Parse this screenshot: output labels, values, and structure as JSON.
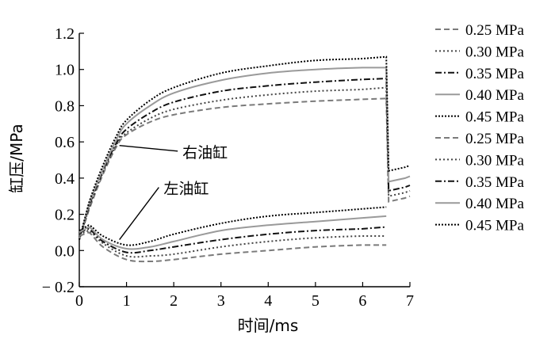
{
  "chart_data": {
    "type": "line",
    "title": "",
    "xlabel": "时间/ms",
    "ylabel": "缸压/MPa",
    "xlim": [
      0,
      7
    ],
    "ylim": [
      -0.2,
      1.2
    ],
    "xticks": [
      0,
      1,
      2,
      3,
      4,
      5,
      6,
      7
    ],
    "yticks": [
      -0.2,
      0.0,
      0.2,
      0.4,
      0.6,
      0.8,
      1.0,
      1.2
    ],
    "ytick_labels": [
      "− 0.2",
      "0.0",
      "0.2",
      "0.4",
      "0.6",
      "0.8",
      "1.0",
      "1.2"
    ],
    "xtick_labels": [
      "0",
      "1",
      "2",
      "3",
      "4",
      "5",
      "6",
      "7"
    ],
    "grid": false,
    "legend_position": "right",
    "annotations": [
      {
        "text": "右油缸",
        "target": [
          0.85,
          0.58
        ],
        "label_at": [
          1.95,
          0.54
        ]
      },
      {
        "text": "左油缸",
        "target": [
          0.85,
          0.06
        ],
        "label_at": [
          1.55,
          0.34
        ]
      }
    ],
    "series": [
      {
        "name": "0.25 MPa",
        "group": "right",
        "style": "dashed",
        "color": "#7a7a7a",
        "x": [
          0,
          0.2,
          0.5,
          0.8,
          1.0,
          1.5,
          2.0,
          3.0,
          4.0,
          5.0,
          6.0,
          6.5,
          6.55,
          6.9,
          7.0
        ],
        "y": [
          0.06,
          0.22,
          0.42,
          0.58,
          0.64,
          0.71,
          0.75,
          0.79,
          0.81,
          0.825,
          0.835,
          0.84,
          0.27,
          0.29,
          0.3
        ]
      },
      {
        "name": "0.30 MPa",
        "group": "right",
        "style": "dotted",
        "color": "#444444",
        "x": [
          0,
          0.2,
          0.5,
          0.8,
          1.0,
          1.5,
          2.0,
          3.0,
          4.0,
          5.0,
          6.0,
          6.5,
          6.55,
          6.9,
          7.0
        ],
        "y": [
          0.06,
          0.23,
          0.43,
          0.59,
          0.65,
          0.73,
          0.78,
          0.83,
          0.86,
          0.88,
          0.89,
          0.9,
          0.3,
          0.32,
          0.33
        ]
      },
      {
        "name": "0.35 MPa",
        "group": "right",
        "style": "dashdot",
        "color": "#111111",
        "x": [
          0,
          0.2,
          0.5,
          0.8,
          1.0,
          1.5,
          2.0,
          3.0,
          4.0,
          5.0,
          6.0,
          6.5,
          6.55,
          6.9,
          7.0
        ],
        "y": [
          0.06,
          0.24,
          0.44,
          0.6,
          0.67,
          0.76,
          0.82,
          0.88,
          0.91,
          0.93,
          0.945,
          0.95,
          0.33,
          0.35,
          0.36
        ]
      },
      {
        "name": "0.40 MPa",
        "group": "right",
        "style": "solid",
        "color": "#9a9a9a",
        "x": [
          0,
          0.2,
          0.5,
          0.8,
          1.0,
          1.5,
          2.0,
          3.0,
          4.0,
          5.0,
          6.0,
          6.5,
          6.55,
          6.9,
          7.0
        ],
        "y": [
          0.06,
          0.25,
          0.45,
          0.62,
          0.7,
          0.8,
          0.87,
          0.94,
          0.98,
          1.0,
          1.01,
          1.01,
          0.38,
          0.4,
          0.41
        ]
      },
      {
        "name": "0.45 MPa",
        "group": "right",
        "style": "densedot",
        "color": "#000000",
        "x": [
          0,
          0.2,
          0.5,
          0.8,
          1.0,
          1.5,
          2.0,
          3.0,
          4.0,
          5.0,
          6.0,
          6.5,
          6.55,
          6.9,
          7.0
        ],
        "y": [
          0.06,
          0.26,
          0.47,
          0.64,
          0.72,
          0.83,
          0.9,
          0.98,
          1.02,
          1.05,
          1.06,
          1.07,
          0.44,
          0.46,
          0.47
        ]
      },
      {
        "name": "0.25 MPa",
        "group": "left",
        "style": "dashed",
        "color": "#7a7a7a",
        "x": [
          0,
          0.2,
          0.5,
          1.0,
          1.5,
          2.0,
          3.0,
          4.0,
          5.0,
          6.0,
          6.5
        ],
        "y": [
          0.08,
          0.1,
          0.02,
          -0.05,
          -0.06,
          -0.05,
          -0.02,
          0.0,
          0.02,
          0.03,
          0.03
        ]
      },
      {
        "name": "0.30 MPa",
        "group": "left",
        "style": "dotted",
        "color": "#444444",
        "x": [
          0,
          0.2,
          0.5,
          1.0,
          1.5,
          2.0,
          3.0,
          4.0,
          5.0,
          6.0,
          6.5
        ],
        "y": [
          0.09,
          0.11,
          0.04,
          -0.03,
          -0.03,
          -0.02,
          0.02,
          0.05,
          0.07,
          0.08,
          0.08
        ]
      },
      {
        "name": "0.35 MPa",
        "group": "left",
        "style": "dashdot",
        "color": "#111111",
        "x": [
          0,
          0.2,
          0.5,
          1.0,
          1.5,
          2.0,
          3.0,
          4.0,
          5.0,
          6.0,
          6.5
        ],
        "y": [
          0.1,
          0.12,
          0.05,
          -0.01,
          0.0,
          0.02,
          0.06,
          0.09,
          0.11,
          0.12,
          0.13
        ]
      },
      {
        "name": "0.40 MPa",
        "group": "left",
        "style": "solid",
        "color": "#9a9a9a",
        "x": [
          0,
          0.2,
          0.5,
          1.0,
          1.5,
          2.0,
          3.0,
          4.0,
          5.0,
          6.0,
          6.5
        ],
        "y": [
          0.1,
          0.13,
          0.06,
          0.01,
          0.02,
          0.05,
          0.11,
          0.14,
          0.16,
          0.18,
          0.19
        ]
      },
      {
        "name": "0.45 MPa",
        "group": "left",
        "style": "densedot",
        "color": "#000000",
        "x": [
          0,
          0.2,
          0.5,
          1.0,
          1.5,
          2.0,
          3.0,
          4.0,
          5.0,
          6.0,
          6.5
        ],
        "y": [
          0.11,
          0.14,
          0.08,
          0.03,
          0.05,
          0.09,
          0.15,
          0.19,
          0.21,
          0.23,
          0.24
        ]
      }
    ]
  }
}
